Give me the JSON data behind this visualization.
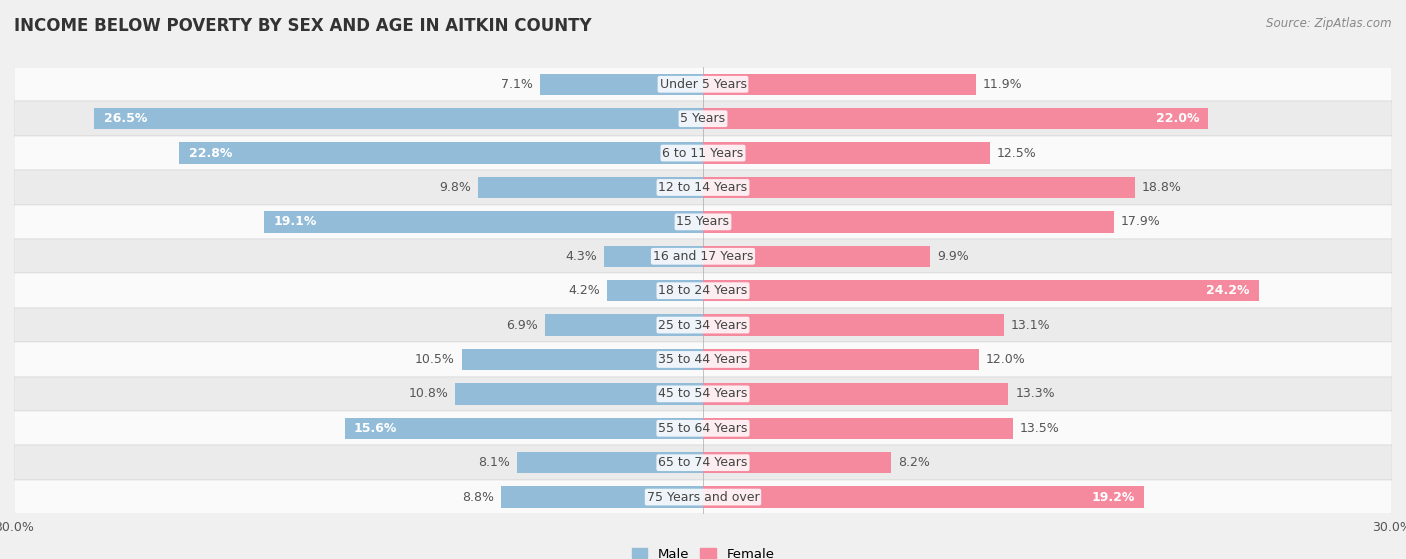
{
  "title": "INCOME BELOW POVERTY BY SEX AND AGE IN AITKIN COUNTY",
  "source": "Source: ZipAtlas.com",
  "categories": [
    "Under 5 Years",
    "5 Years",
    "6 to 11 Years",
    "12 to 14 Years",
    "15 Years",
    "16 and 17 Years",
    "18 to 24 Years",
    "25 to 34 Years",
    "35 to 44 Years",
    "45 to 54 Years",
    "55 to 64 Years",
    "65 to 74 Years",
    "75 Years and over"
  ],
  "male": [
    7.1,
    26.5,
    22.8,
    9.8,
    19.1,
    4.3,
    4.2,
    6.9,
    10.5,
    10.8,
    15.6,
    8.1,
    8.8
  ],
  "female": [
    11.9,
    22.0,
    12.5,
    18.8,
    17.9,
    9.9,
    24.2,
    13.1,
    12.0,
    13.3,
    13.5,
    8.2,
    19.2
  ],
  "male_color": "#92bcd8",
  "female_color": "#f5899e",
  "male_label": "Male",
  "female_label": "Female",
  "xlim": 30.0,
  "bar_height": 0.62,
  "bg_color": "#f0f0f0",
  "row_bg_even": "#fafafa",
  "row_bg_odd": "#ebebeb",
  "title_fontsize": 12,
  "label_fontsize": 9,
  "axis_fontsize": 9,
  "source_fontsize": 8.5,
  "value_inside_threshold_male": 14.0,
  "value_inside_threshold_female": 19.0
}
